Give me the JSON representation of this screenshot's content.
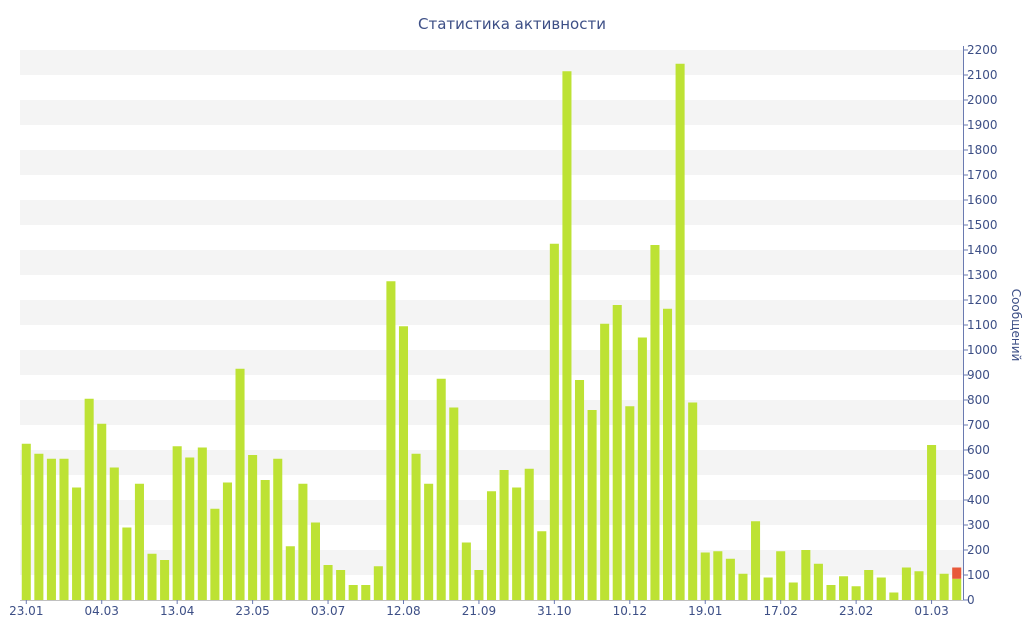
{
  "chart_data": {
    "type": "bar",
    "title": "Статистика активности",
    "ylabel": "Сообщений",
    "xlabel": "",
    "ylim": [
      0,
      2200
    ],
    "y_ticks": [
      0,
      100,
      200,
      300,
      400,
      500,
      600,
      700,
      800,
      900,
      1000,
      1100,
      1200,
      1300,
      1400,
      1500,
      1600,
      1700,
      1800,
      1900,
      2000,
      2100,
      2200
    ],
    "y_axis_side": "right",
    "grid": "alternating horizontal bands",
    "x_tick_labels": [
      {
        "label": "23.01",
        "index": 0
      },
      {
        "label": "04.03",
        "index": 6
      },
      {
        "label": "13.04",
        "index": 12
      },
      {
        "label": "23.05",
        "index": 18
      },
      {
        "label": "03.07",
        "index": 24
      },
      {
        "label": "12.08",
        "index": 30
      },
      {
        "label": "21.09",
        "index": 36
      },
      {
        "label": "31.10",
        "index": 42
      },
      {
        "label": "10.12",
        "index": 48
      },
      {
        "label": "19.01",
        "index": 54
      },
      {
        "label": "17.02",
        "index": 60
      },
      {
        "label": "23.02",
        "index": 66
      },
      {
        "label": "01.03",
        "index": 72
      }
    ],
    "series": [
      {
        "color": "#bde234",
        "values": [
          625,
          585,
          565,
          565,
          450,
          805,
          705,
          530,
          290,
          465,
          185,
          160,
          615,
          570,
          610,
          365,
          470,
          925,
          580,
          480,
          565,
          215,
          465,
          310,
          140,
          120,
          60,
          60,
          135,
          1275,
          1095,
          585,
          465,
          885,
          770,
          230,
          120,
          435,
          520,
          450,
          525,
          275,
          1425,
          2115,
          880,
          760,
          1105,
          1180,
          775,
          1050,
          1420,
          1165,
          2145,
          790,
          190,
          195,
          165,
          105,
          315,
          90,
          195,
          70,
          200,
          145,
          60,
          95,
          55,
          120,
          90,
          30,
          130,
          115,
          620,
          105,
          85
        ]
      },
      {
        "color": "#e8593a",
        "values": [
          0,
          0,
          0,
          0,
          0,
          0,
          0,
          0,
          0,
          0,
          0,
          0,
          0,
          0,
          0,
          0,
          0,
          0,
          0,
          0,
          0,
          0,
          0,
          0,
          0,
          0,
          0,
          0,
          0,
          0,
          0,
          0,
          0,
          0,
          0,
          0,
          0,
          0,
          0,
          0,
          0,
          0,
          0,
          0,
          0,
          0,
          0,
          0,
          0,
          0,
          0,
          0,
          0,
          0,
          0,
          0,
          0,
          0,
          0,
          0,
          0,
          0,
          0,
          0,
          0,
          0,
          0,
          0,
          0,
          0,
          0,
          0,
          0,
          0,
          45
        ]
      }
    ]
  }
}
